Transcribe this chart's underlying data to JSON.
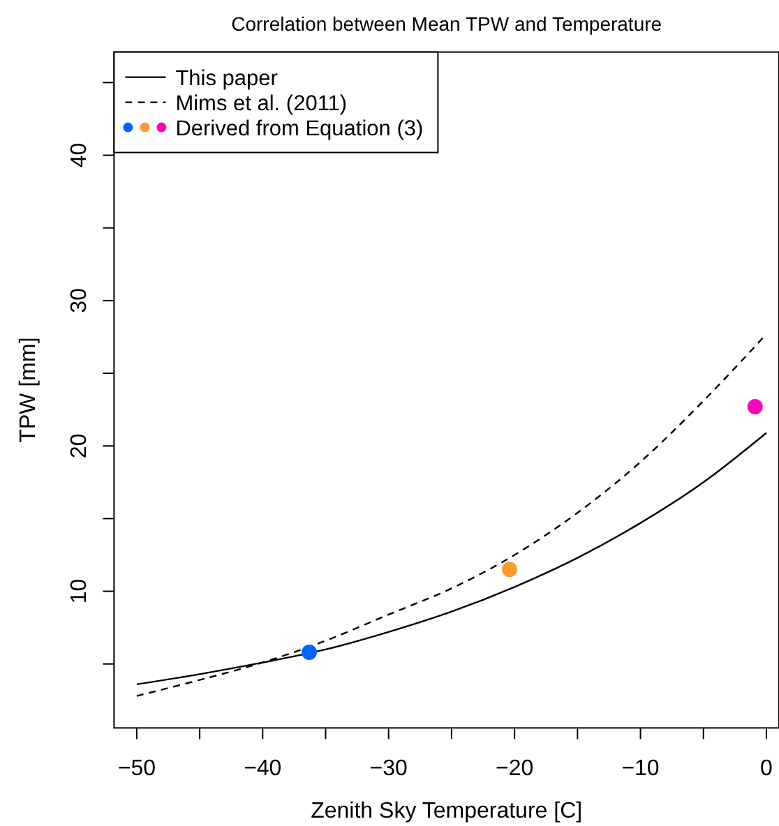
{
  "chart_data": {
    "type": "line",
    "title": "Correlation between Mean TPW and Temperature",
    "xlabel": "Zenith Sky Temperature [C]",
    "ylabel": "TPW [mm]",
    "x": [
      -50,
      -45,
      -40,
      -35,
      -30,
      -25,
      -20,
      -15,
      -10,
      -5,
      0
    ],
    "series": [
      {
        "name": "This paper",
        "color": "#000000",
        "line_style": "solid",
        "values": [
          3.6,
          4.3,
          5.1,
          6.0,
          7.2,
          8.6,
          10.3,
          12.3,
          14.7,
          17.5,
          20.9
        ]
      },
      {
        "name": "Mims et al. (2011)",
        "color": "#000000",
        "line_style": "dashed",
        "values": [
          2.8,
          3.9,
          5.1,
          6.6,
          8.4,
          10.2,
          12.5,
          15.4,
          18.9,
          23.1,
          27.7
        ]
      },
      {
        "name": "Derived from Equation (3)",
        "type": "scatter",
        "marker": "circle",
        "x": [
          -36.3,
          -20.4,
          -0.9
        ],
        "values": [
          5.8,
          11.5,
          22.7
        ],
        "colors": [
          "#0066ff",
          "#ff9933",
          "#ff00bb"
        ]
      }
    ],
    "xlim": [
      -51.8,
      1.0
    ],
    "ylim": [
      0.6,
      47.1
    ],
    "xticks": [
      -50,
      {
        "value": -45,
        "label": null
      },
      -40,
      {
        "value": -35,
        "label": null
      },
      -30,
      {
        "value": -25,
        "label": null
      },
      -20,
      {
        "value": -15,
        "label": null
      },
      -10,
      {
        "value": -5,
        "label": null
      },
      0
    ],
    "yticks": [
      {
        "value": 5,
        "label": null
      },
      10,
      {
        "value": 15,
        "label": null
      },
      20,
      {
        "value": 25,
        "label": null
      },
      30,
      {
        "value": 35,
        "label": null
      },
      40,
      {
        "value": 45,
        "label": null
      }
    ],
    "grid": false,
    "legend": "top left"
  }
}
